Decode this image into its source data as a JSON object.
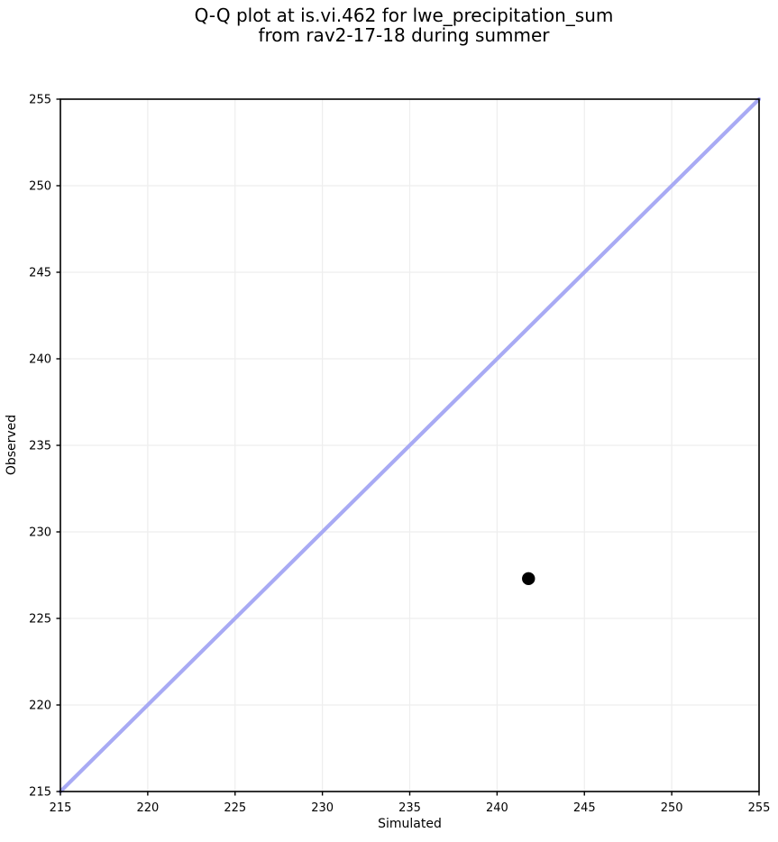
{
  "figure": {
    "title_line1": "Q-Q plot at is.vi.462 for lwe_precipitation_sum",
    "title_line2": "from rav2-17-18 during summer"
  },
  "chart_data": {
    "type": "scatter",
    "title": "Q-Q plot at is.vi.462 for lwe_precipitation_sum\nfrom rav2-17-18 during summer",
    "xlabel": "Simulated",
    "ylabel": "Observed",
    "xlim": [
      215,
      255
    ],
    "ylim": [
      215,
      255
    ],
    "xticks": [
      215,
      220,
      225,
      230,
      235,
      240,
      245,
      250,
      255
    ],
    "yticks": [
      215,
      220,
      225,
      230,
      235,
      240,
      245,
      250,
      255
    ],
    "grid": true,
    "legend": false,
    "series": [
      {
        "name": "identity-line",
        "kind": "line",
        "x": [
          215,
          255
        ],
        "y": [
          215,
          255
        ],
        "color": "#a8aaf4",
        "linewidth": 4.2
      },
      {
        "name": "qq-points",
        "kind": "scatter",
        "points": [
          [
            241.8,
            227.3
          ]
        ],
        "color": "#000000",
        "markersize": 7.2
      }
    ]
  },
  "colors": {
    "background": "#ffffff",
    "grid": "#eeeeee",
    "spine": "#000000",
    "tick": "#000000",
    "text": "#000000",
    "identity_line": "#a8aaf4",
    "point": "#000000"
  }
}
